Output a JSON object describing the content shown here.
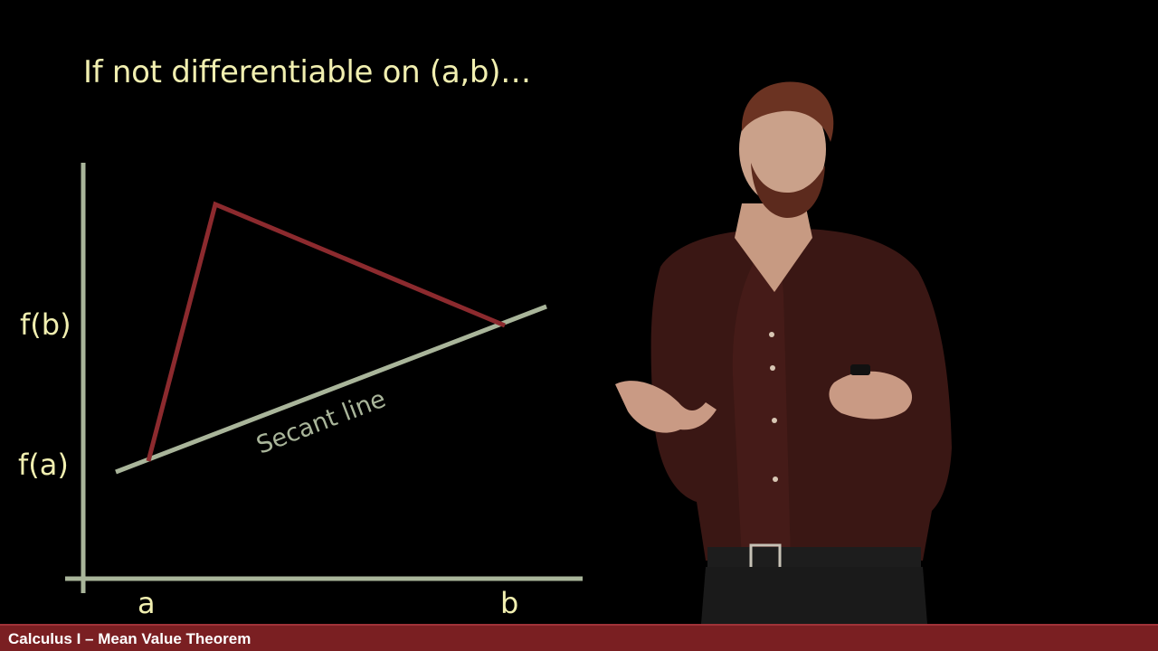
{
  "slide": {
    "title": "If not differentiable on (a,b)…"
  },
  "graph": {
    "y_labels": {
      "fb": "f(b)",
      "fa": "f(a)"
    },
    "x_labels": {
      "a": "a",
      "b": "b"
    },
    "secant_label": "Secant line",
    "colors": {
      "axes": "#a9b59a",
      "function": "#8c2a2e",
      "secant": "#a9b59a",
      "text": "#f1efb0"
    }
  },
  "footer": {
    "course_title": "Calculus I – Mean Value Theorem",
    "color": "#7a1f22"
  }
}
